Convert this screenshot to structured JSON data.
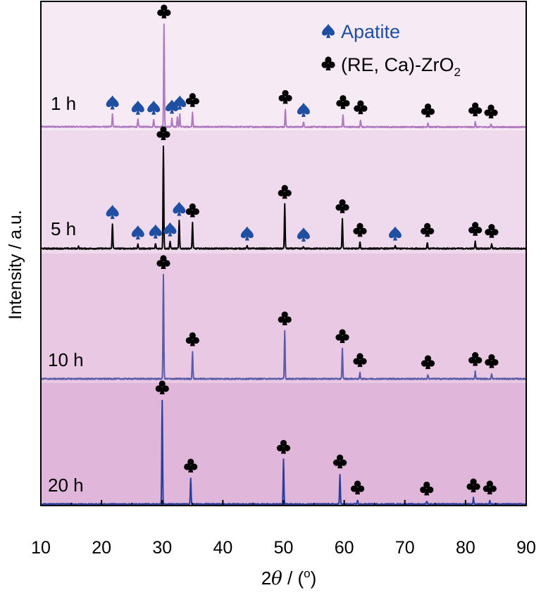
{
  "chart_data": {
    "type": "line",
    "title": "",
    "xlabel": {
      "prefix": "2",
      "symbol": "θ",
      "suffix": " / (",
      "unit": "o",
      "close": ")"
    },
    "ylabel": "Intensity / a.u.",
    "xlim": [
      10,
      90
    ],
    "xticks": [
      "10",
      "20",
      "30",
      "40",
      "50",
      "60",
      "70",
      "80",
      "90"
    ],
    "legend": {
      "position": "top-right",
      "entries": [
        {
          "marker": "spade-icon",
          "label": "Apatite",
          "color": "#1f4fa3"
        },
        {
          "marker": "club-icon",
          "label_main": "(RE, Ca)-ZrO",
          "label_sub": "2",
          "color": "#000000"
        }
      ]
    },
    "series": [
      {
        "name": "1 h",
        "color": "#b07ac0",
        "band_color": "#f6eaf4",
        "peaks": [
          [
            21.8,
            0.12
          ],
          [
            26.0,
            0.07
          ],
          [
            28.6,
            0.07
          ],
          [
            30.3,
            1.0
          ],
          [
            31.6,
            0.08
          ],
          [
            32.5,
            0.1
          ],
          [
            32.9,
            0.12
          ],
          [
            35.0,
            0.14
          ],
          [
            50.3,
            0.17
          ],
          [
            53.3,
            0.05
          ],
          [
            59.8,
            0.12
          ],
          [
            62.7,
            0.07
          ],
          [
            73.8,
            0.04
          ],
          [
            81.6,
            0.05
          ],
          [
            84.2,
            0.03
          ]
        ],
        "spades": [
          [
            21.8,
            0.12
          ],
          [
            26.0,
            0.07
          ],
          [
            28.6,
            0.07
          ],
          [
            31.6,
            0.08
          ],
          [
            32.9,
            0.12
          ],
          [
            53.3,
            0.05
          ]
        ],
        "clubs": [
          [
            30.3,
            1.0
          ],
          [
            35.0,
            0.14
          ],
          [
            50.3,
            0.17
          ],
          [
            59.8,
            0.12
          ],
          [
            62.7,
            0.07
          ],
          [
            73.8,
            0.04
          ],
          [
            81.6,
            0.05
          ],
          [
            84.2,
            0.03
          ]
        ]
      },
      {
        "name": "5 h",
        "color": "#000000",
        "band_color": "#efd9ec",
        "peaks": [
          [
            16.2,
            0.02
          ],
          [
            21.8,
            0.24
          ],
          [
            26.0,
            0.04
          ],
          [
            28.9,
            0.05
          ],
          [
            30.2,
            1.0
          ],
          [
            31.3,
            0.07
          ],
          [
            32.8,
            0.27
          ],
          [
            35.0,
            0.25
          ],
          [
            44.0,
            0.03
          ],
          [
            50.2,
            0.43
          ],
          [
            53.3,
            0.02
          ],
          [
            59.7,
            0.29
          ],
          [
            62.6,
            0.06
          ],
          [
            68.4,
            0.03
          ],
          [
            73.7,
            0.06
          ],
          [
            81.6,
            0.07
          ],
          [
            84.3,
            0.05
          ]
        ],
        "spades": [
          [
            21.8,
            0.24
          ],
          [
            26.0,
            0.04
          ],
          [
            28.9,
            0.05
          ],
          [
            31.3,
            0.07
          ],
          [
            32.8,
            0.27
          ],
          [
            44.0,
            0.03
          ],
          [
            53.3,
            0.02
          ],
          [
            68.4,
            0.03
          ]
        ],
        "clubs": [
          [
            30.2,
            1.0
          ],
          [
            35.0,
            0.25
          ],
          [
            50.2,
            0.43
          ],
          [
            59.7,
            0.29
          ],
          [
            62.6,
            0.06
          ],
          [
            73.7,
            0.06
          ],
          [
            81.6,
            0.07
          ],
          [
            84.3,
            0.05
          ]
        ]
      },
      {
        "name": "10 h",
        "color": "#5a5ca8",
        "band_color": "#e8c8e3",
        "peaks": [
          [
            30.2,
            1.0
          ],
          [
            35.0,
            0.26
          ],
          [
            50.2,
            0.46
          ],
          [
            59.7,
            0.29
          ],
          [
            62.6,
            0.06
          ],
          [
            73.8,
            0.04
          ],
          [
            81.6,
            0.07
          ],
          [
            84.3,
            0.05
          ]
        ],
        "spades": [],
        "clubs": [
          [
            30.2,
            1.0
          ],
          [
            35.0,
            0.26
          ],
          [
            50.2,
            0.46
          ],
          [
            59.7,
            0.29
          ],
          [
            62.6,
            0.06
          ],
          [
            73.8,
            0.04
          ],
          [
            81.6,
            0.07
          ],
          [
            84.3,
            0.05
          ]
        ]
      },
      {
        "name": "20 h",
        "color": "#2a3f9a",
        "band_color": "#e0b6da",
        "peaks": [
          [
            30.0,
            1.0
          ],
          [
            34.7,
            0.25
          ],
          [
            50.0,
            0.43
          ],
          [
            59.3,
            0.29
          ],
          [
            62.2,
            0.04
          ],
          [
            73.6,
            0.03
          ],
          [
            81.3,
            0.06
          ],
          [
            84.0,
            0.04
          ]
        ],
        "spades": [],
        "clubs": [
          [
            30.0,
            1.0
          ],
          [
            34.7,
            0.25
          ],
          [
            50.0,
            0.43
          ],
          [
            59.3,
            0.29
          ],
          [
            62.2,
            0.04
          ],
          [
            73.6,
            0.03
          ],
          [
            81.3,
            0.06
          ],
          [
            84.0,
            0.04
          ]
        ]
      }
    ]
  }
}
